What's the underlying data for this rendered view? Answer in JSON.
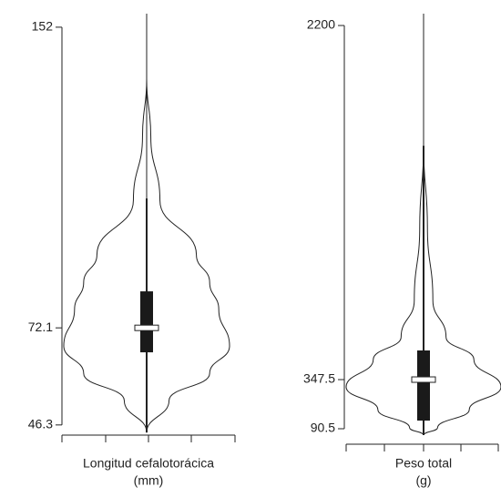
{
  "chart_data": [
    {
      "type": "violin",
      "xlabel": "Longitud cefalotorácica",
      "xlabel_unit": "(mm)",
      "ylim": [
        43.6,
        155.6
      ],
      "yticks": [
        46.3,
        72.1,
        152
      ],
      "violin": {
        "y": [
          138.2,
          123,
          106,
          91.5,
          84.2,
          77,
          67.3,
          60,
          52.8,
          44.3
        ],
        "width": [
          0,
          0.05,
          0.16,
          0.6,
          0.76,
          0.87,
          1,
          0.76,
          0.27,
          0
        ]
      },
      "q1": 65.6,
      "median": 72.1,
      "q3": 81.8,
      "whiskers": [
        44.3,
        106.5
      ],
      "range": [
        44.3,
        155.6
      ]
    },
    {
      "type": "violin",
      "xlabel": "Peso total",
      "xlabel_unit": "(g)",
      "ylim": [
        9.5,
        2262
      ],
      "yticks": [
        90.5,
        347.5,
        2200
      ],
      "violin": {
        "y": [
          1571,
          1143,
          762,
          571,
          452,
          309,
          190,
          95,
          57
        ],
        "width": [
          0,
          0.05,
          0.12,
          0.29,
          0.65,
          1,
          0.59,
          0.18,
          0
        ]
      },
      "q1": 133,
      "median": 347.5,
      "q3": 500,
      "whiskers": [
        57,
        1571
      ],
      "range": [
        57,
        2262
      ]
    }
  ]
}
